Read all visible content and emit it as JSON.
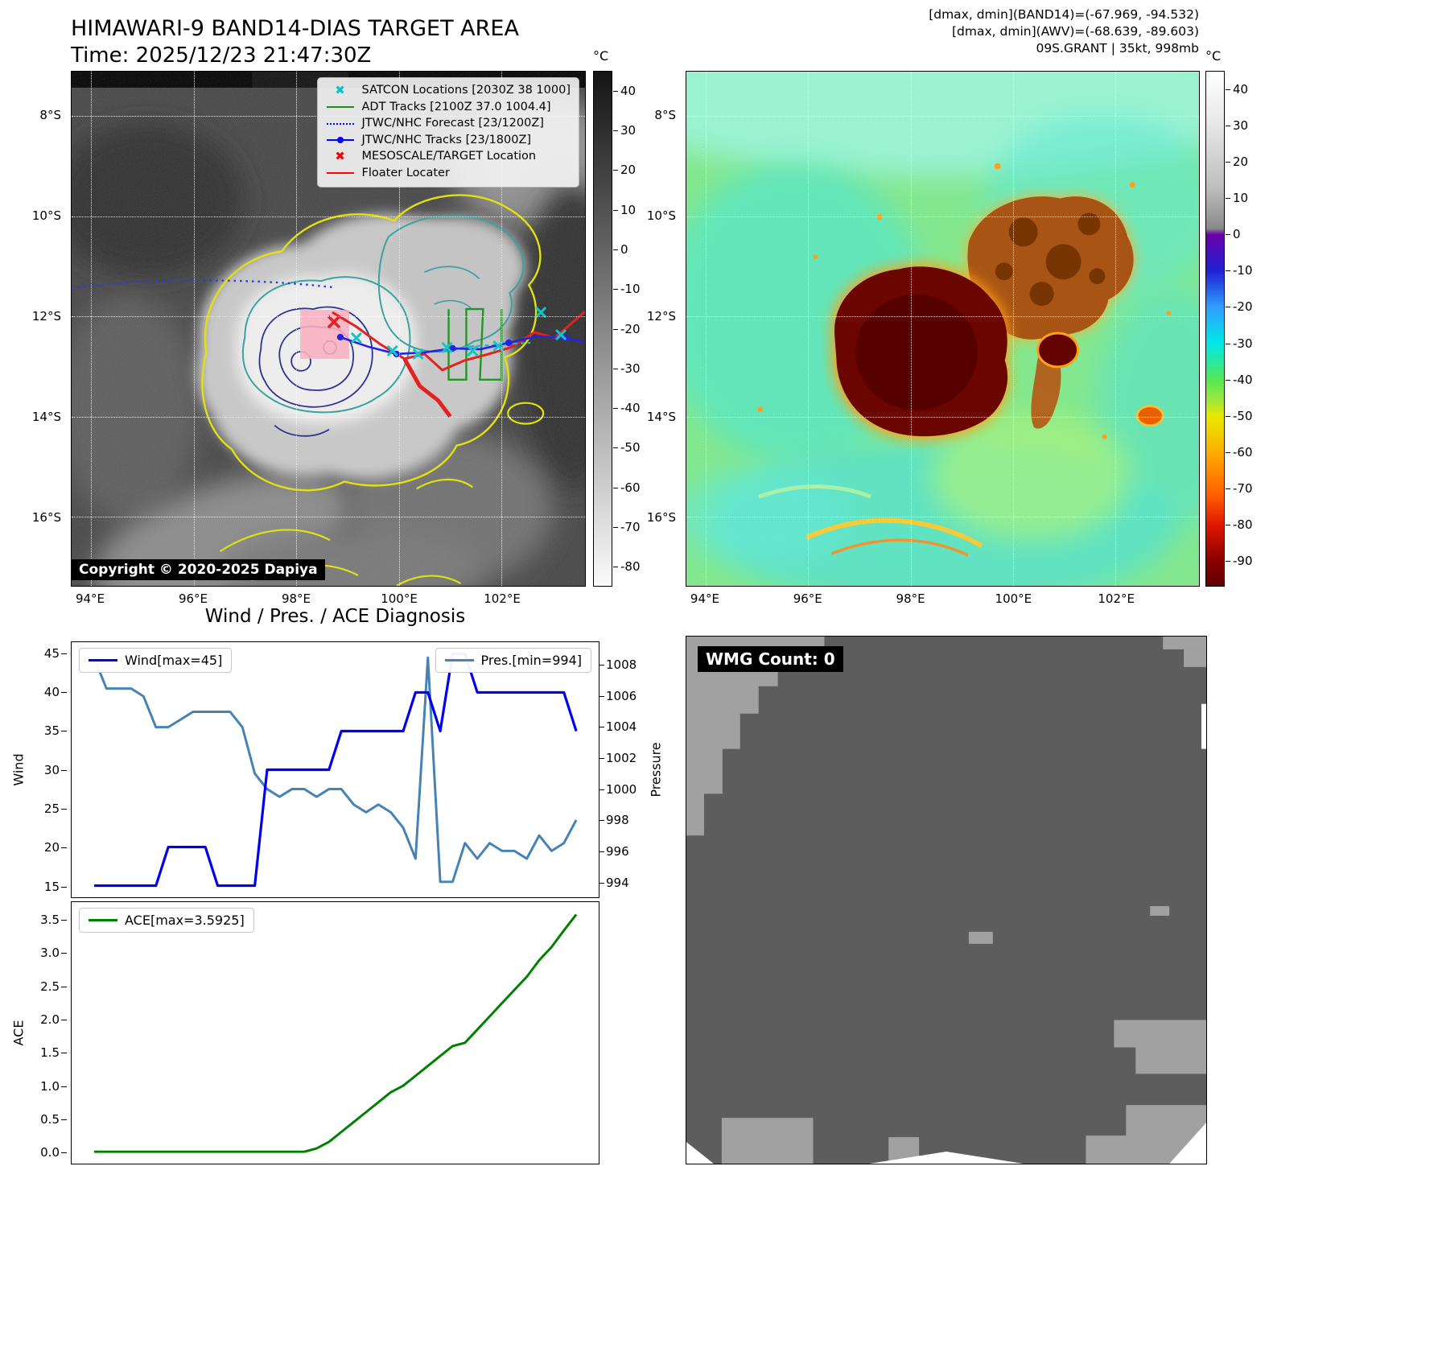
{
  "band14": {
    "title": "HIMAWARI-9 BAND14-DIAS TARGET AREA",
    "time_line": "Time: 2025/12/23 21:47:30Z",
    "legend": [
      {
        "icon": "satcon-x-icon",
        "marker": "x",
        "color": "#00C5CD",
        "label": "SATCON Locations [2030Z 38 1000]"
      },
      {
        "icon": "adt-track-line-icon",
        "marker": "line",
        "color": "#1E8B1E",
        "label": "ADT Tracks [2100Z 37.0 1004.4]"
      },
      {
        "icon": "jtwc-forecast-dotted-line-icon",
        "marker": "dotted",
        "color": "#0000FF",
        "label": "JTWC/NHC Forecast [23/1200Z]"
      },
      {
        "icon": "jtwc-track-line-dot-icon",
        "marker": "line-dot",
        "color": "#0000FF",
        "label": "JTWC/NHC Tracks [23/1800Z]"
      },
      {
        "icon": "mesoscale-target-x-icon",
        "marker": "x",
        "color": "#FF0000",
        "label": "MESOSCALE/TARGET Location"
      },
      {
        "icon": "floater-line-icon",
        "marker": "line",
        "color": "#FF0000",
        "label": "Floater Locater"
      }
    ],
    "copyright": "Copyright © 2020-2025 Dapiya",
    "lat_ticks": [
      "8°S",
      "10°S",
      "12°S",
      "14°S",
      "16°S"
    ],
    "lon_ticks": [
      "94°E",
      "96°E",
      "98°E",
      "100°E",
      "102°E"
    ],
    "colorbar_unit": "°C",
    "colorbar_ticks": [
      "40",
      "30",
      "20",
      "10",
      "0",
      "-10",
      "-20",
      "-30",
      "-40",
      "-50",
      "-60",
      "-70",
      "-80"
    ]
  },
  "awv": {
    "header_line1": "[dmax, dmin](BAND14)=(-67.969, -94.532)",
    "header_line2": "[dmax, dmin](AWV)=(-68.639, -89.603)",
    "header_line3": "09S.GRANT | 35kt, 998mb",
    "lat_ticks": [
      "8°S",
      "10°S",
      "12°S",
      "14°S",
      "16°S"
    ],
    "lon_ticks": [
      "94°E",
      "96°E",
      "98°E",
      "100°E",
      "102°E"
    ],
    "colorbar_unit": "°C",
    "colorbar_ticks": [
      "40",
      "30",
      "20",
      "10",
      "0",
      "-10",
      "-20",
      "-30",
      "-40",
      "-50",
      "-60",
      "-70",
      "-80",
      "-90"
    ]
  },
  "diagnosis": {
    "title": "Wind / Pres. / ACE Diagnosis",
    "wind_legend": "Wind[max=45]",
    "pres_legend": "Pres.[min=994]",
    "ace_legend": "ACE[max=3.5925]",
    "wind_axis_label": "Wind",
    "pressure_axis_label": "Pressure",
    "ace_axis_label": "ACE",
    "wind_ticks": [
      "15",
      "20",
      "25",
      "30",
      "35",
      "40",
      "45"
    ],
    "pressure_ticks": [
      "994",
      "996",
      "998",
      "1000",
      "1002",
      "1004",
      "1006",
      "1008"
    ],
    "ace_ticks": [
      "0.0",
      "0.5",
      "1.0",
      "1.5",
      "2.0",
      "2.5",
      "3.0",
      "3.5"
    ]
  },
  "wmg": {
    "label": "WMG Count: 0"
  },
  "chart_data": [
    {
      "type": "line",
      "title": "Wind / Pres. / ACE Diagnosis",
      "x_note": "time index 0-39, x tick labels not shown in figure",
      "series": [
        {
          "name": "Wind[max=45]",
          "axis": "left",
          "color": "#0000EE",
          "max": 45,
          "values": [
            15,
            15,
            15,
            15,
            15,
            15,
            20,
            20,
            20,
            20,
            15,
            15,
            15,
            15,
            30,
            30,
            30,
            30,
            30,
            30,
            35,
            35,
            35,
            35,
            35,
            35,
            40,
            40,
            35,
            45,
            45,
            40,
            40,
            40,
            40,
            40,
            40,
            40,
            40,
            35
          ]
        },
        {
          "name": "Pres.[min=994]",
          "axis": "right",
          "color": "#4682B4",
          "min": 994,
          "values": [
            1008.5,
            1006.5,
            1006.5,
            1006.5,
            1006,
            1004,
            1004,
            1004.5,
            1005,
            1005,
            1005,
            1005,
            1004,
            1001,
            1000,
            999.5,
            1000,
            1000,
            999.5,
            1000,
            1000,
            999,
            998.5,
            999,
            998.5,
            997.5,
            995.5,
            1008.5,
            994,
            994,
            996.5,
            995.5,
            996.5,
            996,
            996,
            995.5,
            997,
            996,
            996.5,
            998
          ]
        }
      ],
      "ylabel_left": "Wind",
      "ylabel_right": "Pressure",
      "yticks_left": [
        15,
        20,
        25,
        30,
        35,
        40,
        45
      ],
      "yticks_right": [
        994,
        996,
        998,
        1000,
        1002,
        1004,
        1006,
        1008
      ],
      "ylim_left": [
        13.5,
        46.5
      ],
      "ylim_right": [
        993.0,
        1009.5
      ],
      "grid": false,
      "legend_position": "wind top-left, pressure top-right"
    },
    {
      "type": "line",
      "x_note": "time index 0-39, x tick labels not shown in figure",
      "series": [
        {
          "name": "ACE[max=3.5925]",
          "color": "#008000",
          "max": 3.5925,
          "values": [
            0,
            0,
            0,
            0,
            0,
            0,
            0,
            0,
            0,
            0,
            0,
            0,
            0,
            0,
            0,
            0,
            0,
            0,
            0.05,
            0.15,
            0.3,
            0.45,
            0.6,
            0.75,
            0.9,
            1.0,
            1.15,
            1.3,
            1.45,
            1.6,
            1.65,
            1.85,
            2.05,
            2.25,
            2.45,
            2.65,
            2.9,
            3.1,
            3.35,
            3.5925
          ]
        }
      ],
      "ylabel": "ACE",
      "yticks": [
        0.0,
        0.5,
        1.0,
        1.5,
        2.0,
        2.5,
        3.0,
        3.5
      ],
      "ylim": [
        -0.18,
        3.78
      ],
      "grid": false,
      "legend_position": "top-left"
    }
  ]
}
